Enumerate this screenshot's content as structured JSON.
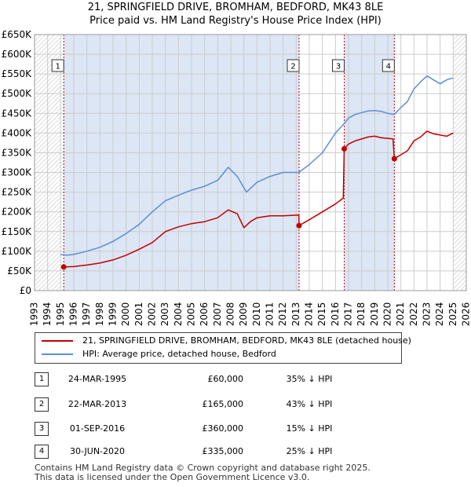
{
  "title": "21, SPRINGFIELD DRIVE, BROMHAM, BEDFORD, MK43 8LE",
  "subtitle": "Price paid vs. HM Land Registry's House Price Index (HPI)",
  "colors": {
    "price_paid": "#c00000",
    "hpi": "#5b8fd4",
    "shade": "#dce6f5",
    "grid": "#cccccc"
  },
  "chart_data": {
    "type": "line",
    "xlim": [
      1993,
      2026
    ],
    "ylim": [
      0,
      650000
    ],
    "y_ticks": [
      0,
      50000,
      100000,
      150000,
      200000,
      250000,
      300000,
      350000,
      400000,
      450000,
      500000,
      550000,
      600000,
      650000
    ],
    "y_tick_labels": [
      "£0",
      "£50K",
      "£100K",
      "£150K",
      "£200K",
      "£250K",
      "£300K",
      "£350K",
      "£400K",
      "£450K",
      "£500K",
      "£550K",
      "£600K",
      "£650K"
    ],
    "x_ticks": [
      1993,
      1994,
      1995,
      1996,
      1997,
      1998,
      1999,
      2000,
      2001,
      2002,
      2003,
      2004,
      2005,
      2006,
      2007,
      2008,
      2009,
      2010,
      2011,
      2012,
      2013,
      2014,
      2015,
      2016,
      2017,
      2018,
      2019,
      2020,
      2021,
      2022,
      2023,
      2024,
      2025,
      2026
    ],
    "x_tick_labels": [
      "1993",
      "1994",
      "1995",
      "1996",
      "1997",
      "1998",
      "1999",
      "2000",
      "2001",
      "2002",
      "2003",
      "2004",
      "2005",
      "2006",
      "2007",
      "2008",
      "2009",
      "2010",
      "2011",
      "2012",
      "2013",
      "2014",
      "2015",
      "2016",
      "2017",
      "2018",
      "2019",
      "2020",
      "2021",
      "2022",
      "2023",
      "2024",
      "2025",
      "2026"
    ],
    "shaded_ranges": [
      [
        1995.23,
        2013.22
      ],
      [
        2016.67,
        2020.5
      ]
    ],
    "hatched_ranges": [
      [
        1993,
        1995.0
      ],
      [
        2025.0,
        2026
      ]
    ],
    "series": [
      {
        "name": "21, SPRINGFIELD DRIVE, BROMHAM, BEDFORD, MK43 8LE (detached house)",
        "key": "price_paid",
        "x": [
          1995.23,
          1996.0,
          1997.0,
          1998.0,
          1999.0,
          2000.0,
          2001.0,
          2002.0,
          2003.0,
          2004.0,
          2005.0,
          2006.0,
          2007.0,
          2007.8,
          2008.5,
          2009.0,
          2009.5,
          2010.0,
          2011.0,
          2012.0,
          2013.2,
          2013.22,
          2014.0,
          2015.0,
          2016.0,
          2016.6,
          2016.67,
          2017.0,
          2017.5,
          2018.0,
          2018.5,
          2019.0,
          2019.5,
          2020.4,
          2020.5,
          2021.0,
          2021.5,
          2022.0,
          2022.5,
          2023.0,
          2023.5,
          2024.0,
          2024.5,
          2025.0
        ],
        "values": [
          60000,
          61000,
          65000,
          70000,
          78000,
          90000,
          105000,
          122000,
          150000,
          162000,
          170000,
          175000,
          185000,
          205000,
          195000,
          160000,
          175000,
          185000,
          190000,
          190000,
          192000,
          165000,
          180000,
          200000,
          220000,
          235000,
          360000,
          372000,
          380000,
          385000,
          390000,
          392000,
          388000,
          385000,
          335000,
          345000,
          355000,
          380000,
          390000,
          405000,
          398000,
          395000,
          392000,
          400000
        ]
      },
      {
        "name": "HPI: Average price, detached house, Bedford",
        "key": "hpi",
        "x": [
          1995.0,
          1995.5,
          1996.0,
          1997.0,
          1998.0,
          1999.0,
          2000.0,
          2001.0,
          2002.0,
          2003.0,
          2004.0,
          2005.0,
          2006.0,
          2007.0,
          2007.8,
          2008.5,
          2009.2,
          2010.0,
          2011.0,
          2012.0,
          2013.2,
          2014.0,
          2015.0,
          2016.0,
          2016.67,
          2017.0,
          2017.5,
          2018.0,
          2018.5,
          2019.0,
          2019.5,
          2020.0,
          2020.5,
          2021.0,
          2021.5,
          2022.0,
          2022.5,
          2023.0,
          2023.5,
          2024.0,
          2024.5,
          2025.0
        ],
        "values": [
          92000,
          90000,
          92000,
          100000,
          110000,
          125000,
          145000,
          168000,
          200000,
          228000,
          242000,
          255000,
          265000,
          280000,
          313000,
          290000,
          250000,
          275000,
          290000,
          300000,
          300000,
          320000,
          350000,
          400000,
          424000,
          438000,
          447000,
          452000,
          456000,
          457000,
          455000,
          450000,
          447000,
          465000,
          480000,
          512000,
          530000,
          545000,
          535000,
          525000,
          535000,
          540000
        ]
      }
    ],
    "sales": [
      {
        "label": "1",
        "x": 1995.23,
        "value": 60000
      },
      {
        "label": "2",
        "x": 2013.22,
        "value": 165000
      },
      {
        "label": "3",
        "x": 2016.67,
        "value": 360000
      },
      {
        "label": "4",
        "x": 2020.5,
        "value": 335000
      }
    ]
  },
  "legend": {
    "price_paid_label": "21, SPRINGFIELD DRIVE, BROMHAM, BEDFORD, MK43 8LE (detached house)",
    "hpi_label": "HPI: Average price, detached house, Bedford"
  },
  "transactions": [
    {
      "num": "1",
      "date": "24-MAR-1995",
      "price": "£60,000",
      "hpi": "35% ↓ HPI"
    },
    {
      "num": "2",
      "date": "22-MAR-2013",
      "price": "£165,000",
      "hpi": "43% ↓ HPI"
    },
    {
      "num": "3",
      "date": "01-SEP-2016",
      "price": "£360,000",
      "hpi": "15% ↓ HPI"
    },
    {
      "num": "4",
      "date": "30-JUN-2020",
      "price": "£335,000",
      "hpi": "25% ↓ HPI"
    }
  ],
  "footer": {
    "line1": "Contains HM Land Registry data © Crown copyright and database right 2025.",
    "line2": "This data is licensed under the Open Government Licence v3.0."
  }
}
